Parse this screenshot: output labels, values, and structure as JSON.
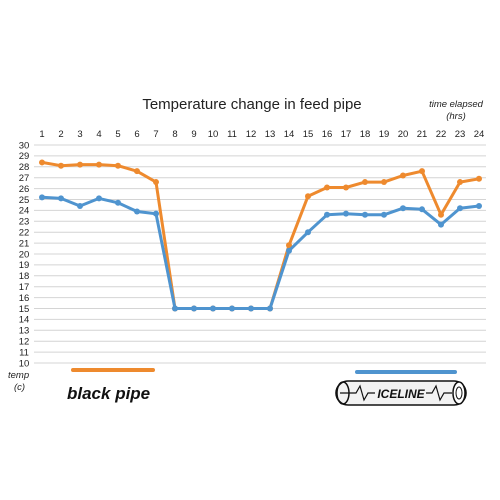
{
  "chart_data": {
    "type": "line",
    "title": "Temperature change in feed pipe",
    "xlabel_line1": "time elapsed",
    "xlabel_line2": "(hrs)",
    "ylabel_line1": "temp",
    "ylabel_line2": "(c)",
    "x": [
      1,
      2,
      3,
      4,
      5,
      6,
      7,
      8,
      9,
      10,
      11,
      12,
      13,
      14,
      15,
      16,
      17,
      18,
      19,
      20,
      21,
      22,
      23,
      24
    ],
    "x_axis_position": "top",
    "ylim": [
      10,
      30
    ],
    "yticks": [
      10,
      11,
      12,
      13,
      14,
      15,
      16,
      17,
      18,
      19,
      20,
      21,
      22,
      23,
      24,
      25,
      26,
      27,
      28,
      29,
      30
    ],
    "grid": "horizontal",
    "series": [
      {
        "name": "black pipe",
        "color": "#ee8a2e",
        "values": [
          28.4,
          28.1,
          28.2,
          28.2,
          28.1,
          27.6,
          26.6,
          15.0,
          15.0,
          15.0,
          15.0,
          15.0,
          15.0,
          20.8,
          25.3,
          26.1,
          26.1,
          26.6,
          26.6,
          27.2,
          27.6,
          23.6,
          26.6,
          26.9
        ]
      },
      {
        "name": "ICELINE",
        "color": "#4f94cf",
        "values": [
          25.2,
          25.1,
          24.4,
          25.1,
          24.7,
          23.9,
          23.7,
          15.0,
          15.0,
          15.0,
          15.0,
          15.0,
          15.0,
          20.3,
          22.0,
          23.6,
          23.7,
          23.6,
          23.6,
          24.2,
          24.1,
          22.7,
          24.2,
          24.4
        ]
      }
    ],
    "legend": {
      "placement": "bottom",
      "black_pipe_label": "black pipe",
      "iceline_label": "ICELINE"
    }
  }
}
